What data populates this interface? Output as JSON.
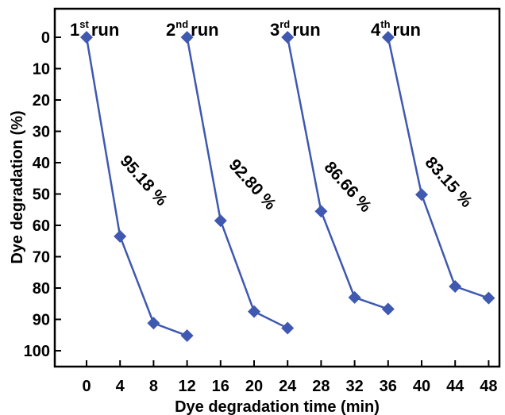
{
  "chart_data": {
    "type": "line",
    "xlabel": "Dye degradation time (min)",
    "ylabel": "Dye degradation (%)",
    "xlim": [
      -3,
      50
    ],
    "ylim": [
      0,
      100
    ],
    "y_inverted": true,
    "grid": false,
    "x_ticks": [
      0,
      4,
      8,
      12,
      16,
      20,
      24,
      28,
      32,
      36,
      40,
      44,
      48
    ],
    "y_ticks": [
      0,
      10,
      20,
      30,
      40,
      50,
      60,
      70,
      80,
      90,
      100
    ],
    "series_color": "#3f58b0",
    "marker": "diamond",
    "series": [
      {
        "x": [
          0,
          4,
          8,
          12
        ],
        "y": [
          0,
          63.5,
          91.2,
          95.2
        ]
      },
      {
        "x": [
          12,
          16,
          20,
          24
        ],
        "y": [
          0,
          58.5,
          87.5,
          92.8
        ]
      },
      {
        "x": [
          24,
          28,
          32,
          36
        ],
        "y": [
          0,
          55.5,
          83,
          86.7
        ]
      },
      {
        "x": [
          36,
          40,
          44,
          48
        ],
        "y": [
          0,
          50.2,
          79.5,
          83.2
        ]
      }
    ],
    "run_labels": [
      {
        "num": "1",
        "sup": "st",
        "word": "run"
      },
      {
        "num": "2",
        "sup": "nd",
        "word": "run"
      },
      {
        "num": "3",
        "sup": "rd",
        "word": "run"
      },
      {
        "num": "4",
        "sup": "th",
        "word": "run"
      }
    ],
    "annotations": [
      "95.18 %",
      "92.80 %",
      "86.66 %",
      "83.15 %"
    ]
  }
}
